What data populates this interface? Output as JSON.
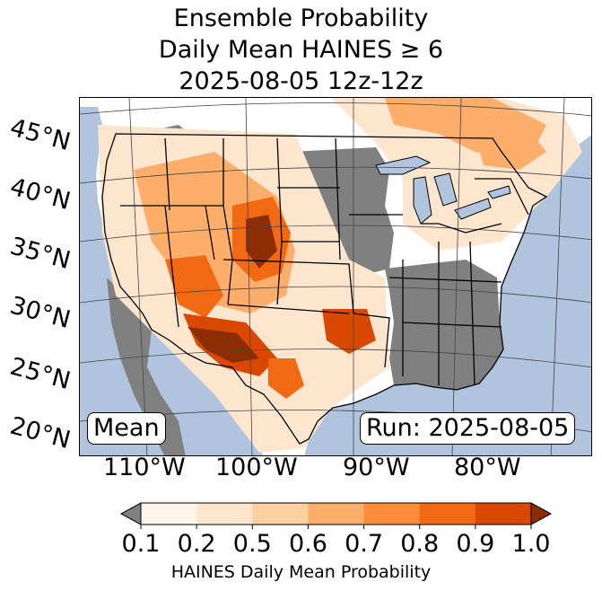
{
  "title": {
    "line1": "Ensemble Probability",
    "line2": "Daily Mean HAINES ≥ 6",
    "line3": "2025-08-05 12z-12z"
  },
  "map": {
    "latitude_labels": [
      "45°N",
      "40°N",
      "35°N",
      "30°N",
      "25°N",
      "20°N"
    ],
    "longitude_labels": [
      "110°W",
      "100°W",
      "90°W",
      "80°W"
    ],
    "ocean_color": "#b0c4de",
    "land_color": "#ffffff",
    "below_threshold_color": "#808080",
    "mean_label": "Mean",
    "run_label": "Run: 2025-08-05"
  },
  "colorbar": {
    "ticks": [
      "0.1",
      "0.2",
      "0.5",
      "0.6",
      "0.7",
      "0.8",
      "0.9",
      "1.0"
    ],
    "colors": [
      "#fff5eb",
      "#fee6ce",
      "#fdd0a2",
      "#fdae6b",
      "#fd8d3c",
      "#f16913",
      "#d94801",
      "#8c2d04"
    ],
    "under_color": "#808080",
    "label": "HAINES Daily Mean Probability"
  }
}
